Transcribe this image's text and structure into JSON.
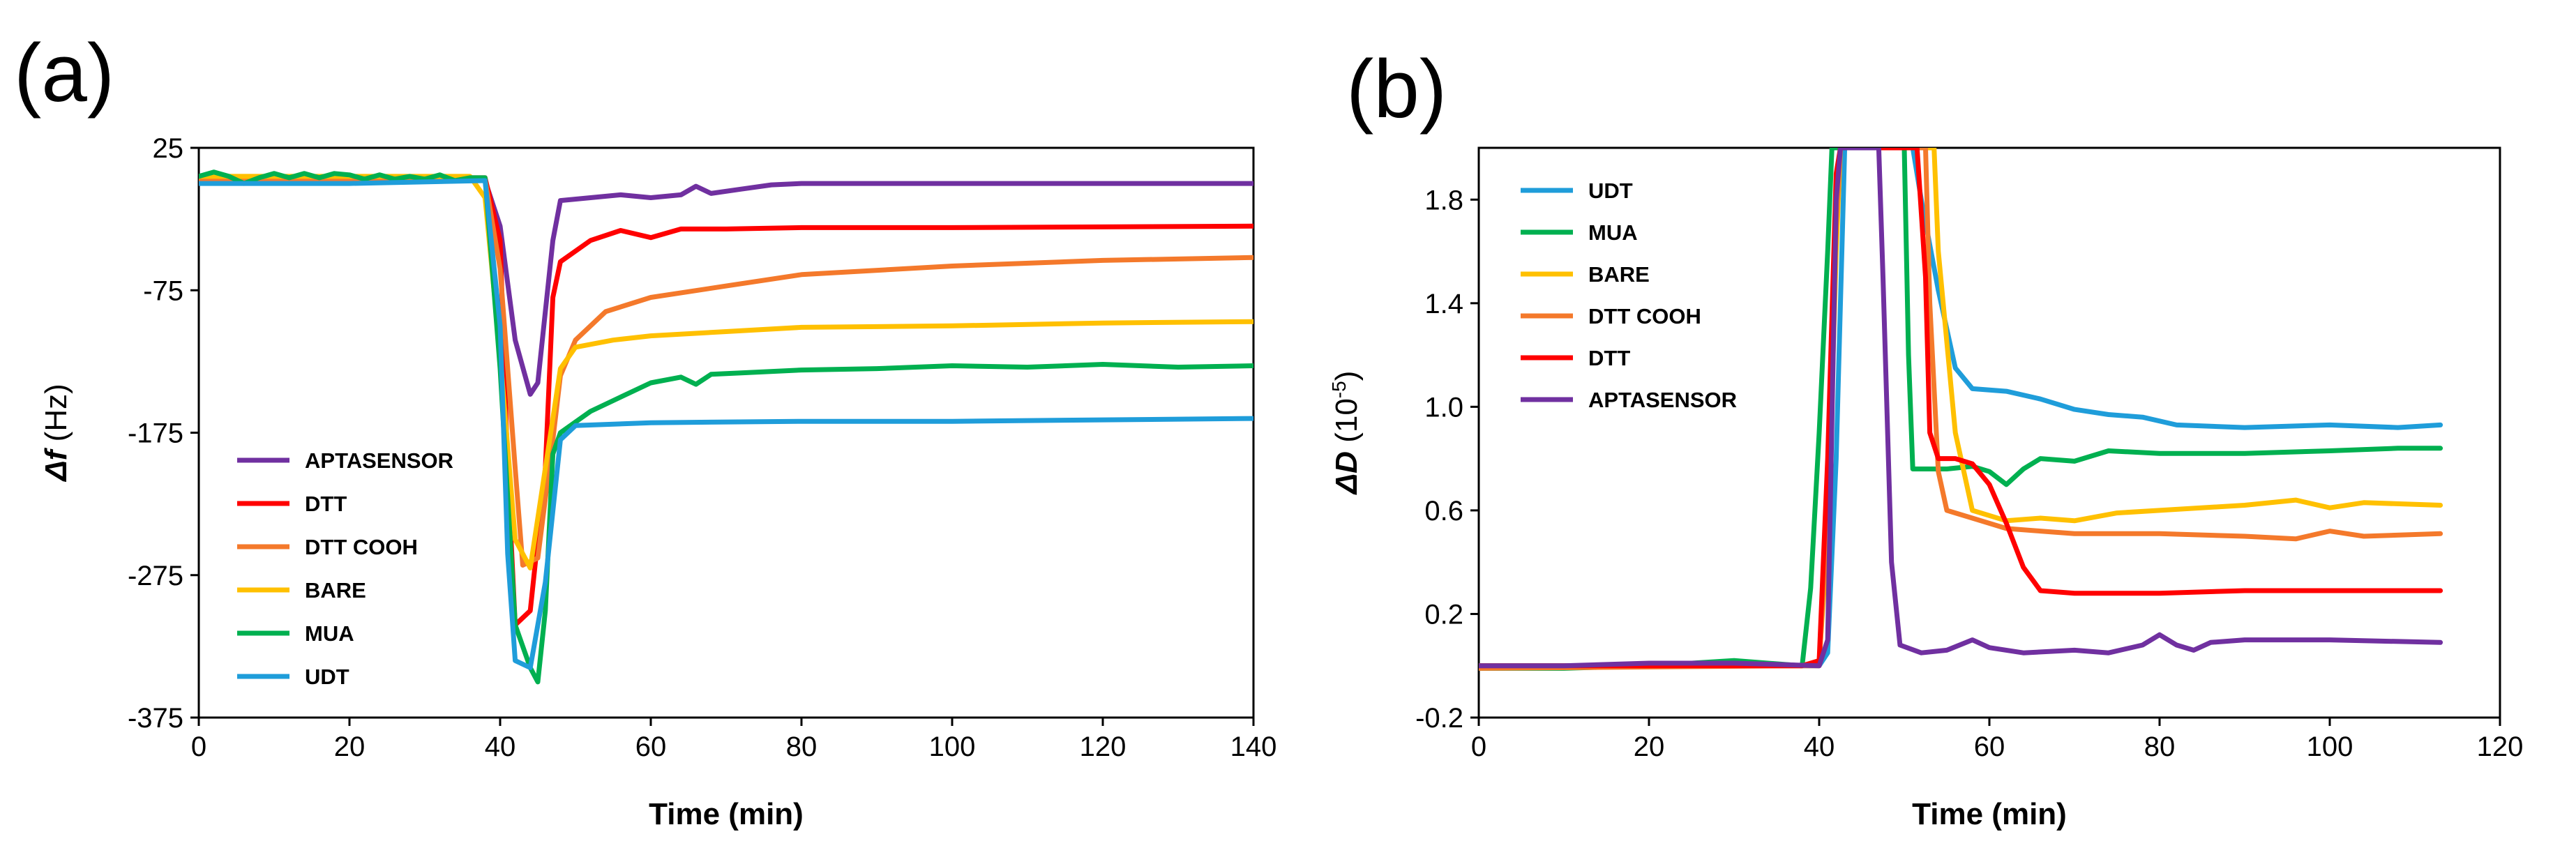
{
  "figure": {
    "panel_a_label": "(a)",
    "panel_b_label": "(b)"
  },
  "chart_data": [
    {
      "id": "a",
      "type": "line",
      "panel_label": "(a)",
      "xlabel": "Time (min)",
      "ylabel_symbol": "Δf",
      "ylabel_unit": " (Hz)",
      "xlim": [
        0,
        140
      ],
      "ylim": [
        -375,
        25
      ],
      "xticks": [
        0,
        20,
        40,
        60,
        80,
        100,
        120,
        140
      ],
      "yticks": [
        25,
        -75,
        -175,
        -275,
        -375
      ],
      "legend_position": "bottom-left",
      "series": [
        {
          "name": "APTASENSOR",
          "color": "#7030A0",
          "points": [
            [
              0,
              2
            ],
            [
              20,
              2
            ],
            [
              38,
              2
            ],
            [
              40,
              -30
            ],
            [
              42,
              -110
            ],
            [
              44,
              -148
            ],
            [
              45,
              -140
            ],
            [
              47,
              -40
            ],
            [
              48,
              -12
            ],
            [
              52,
              -10
            ],
            [
              56,
              -8
            ],
            [
              60,
              -10
            ],
            [
              64,
              -8
            ],
            [
              66,
              -2
            ],
            [
              68,
              -7
            ],
            [
              72,
              -4
            ],
            [
              76,
              -1
            ],
            [
              80,
              0
            ],
            [
              100,
              0
            ],
            [
              140,
              0
            ]
          ]
        },
        {
          "name": "DTT",
          "color": "#FF0000",
          "points": [
            [
              0,
              4
            ],
            [
              38,
              4
            ],
            [
              40,
              -40
            ],
            [
              41,
              -200
            ],
            [
              42,
              -310
            ],
            [
              44,
              -300
            ],
            [
              46,
              -200
            ],
            [
              47,
              -80
            ],
            [
              48,
              -55
            ],
            [
              52,
              -40
            ],
            [
              56,
              -33
            ],
            [
              60,
              -38
            ],
            [
              64,
              -32
            ],
            [
              70,
              -32
            ],
            [
              80,
              -31
            ],
            [
              100,
              -31
            ],
            [
              140,
              -30
            ]
          ]
        },
        {
          "name": "DTT COOH",
          "color": "#F4792B",
          "points": [
            [
              0,
              3
            ],
            [
              38,
              3
            ],
            [
              40,
              -60
            ],
            [
              42,
              -200
            ],
            [
              43,
              -268
            ],
            [
              45,
              -263
            ],
            [
              47,
              -180
            ],
            [
              48,
              -135
            ],
            [
              50,
              -110
            ],
            [
              54,
              -90
            ],
            [
              60,
              -80
            ],
            [
              70,
              -72
            ],
            [
              80,
              -64
            ],
            [
              100,
              -58
            ],
            [
              120,
              -54
            ],
            [
              140,
              -52
            ]
          ]
        },
        {
          "name": "BARE",
          "color": "#FFC000",
          "points": [
            [
              0,
              5
            ],
            [
              36,
              5
            ],
            [
              38,
              -10
            ],
            [
              40,
              -120
            ],
            [
              42,
              -250
            ],
            [
              44,
              -270
            ],
            [
              46,
              -200
            ],
            [
              48,
              -130
            ],
            [
              50,
              -115
            ],
            [
              55,
              -110
            ],
            [
              60,
              -107
            ],
            [
              70,
              -104
            ],
            [
              80,
              -101
            ],
            [
              100,
              -100
            ],
            [
              120,
              -98
            ],
            [
              140,
              -97
            ]
          ]
        },
        {
          "name": "MUA",
          "color": "#00B050",
          "points": [
            [
              0,
              5
            ],
            [
              2,
              8
            ],
            [
              4,
              5
            ],
            [
              6,
              0
            ],
            [
              8,
              4
            ],
            [
              10,
              7
            ],
            [
              12,
              4
            ],
            [
              14,
              7
            ],
            [
              16,
              4
            ],
            [
              18,
              7
            ],
            [
              20,
              6
            ],
            [
              22,
              3
            ],
            [
              24,
              6
            ],
            [
              26,
              3
            ],
            [
              28,
              5
            ],
            [
              30,
              3
            ],
            [
              32,
              6
            ],
            [
              34,
              2
            ],
            [
              36,
              4
            ],
            [
              38,
              4
            ],
            [
              40,
              -130
            ],
            [
              42,
              -310
            ],
            [
              44,
              -340
            ],
            [
              45,
              -350
            ],
            [
              46,
              -300
            ],
            [
              47,
              -190
            ],
            [
              48,
              -175
            ],
            [
              52,
              -160
            ],
            [
              56,
              -150
            ],
            [
              60,
              -140
            ],
            [
              64,
              -136
            ],
            [
              66,
              -141
            ],
            [
              68,
              -134
            ],
            [
              72,
              -133
            ],
            [
              80,
              -131
            ],
            [
              90,
              -130
            ],
            [
              100,
              -128
            ],
            [
              110,
              -129
            ],
            [
              120,
              -127
            ],
            [
              130,
              -129
            ],
            [
              140,
              -128
            ]
          ]
        },
        {
          "name": "UDT",
          "color": "#1F9DDA",
          "points": [
            [
              0,
              0
            ],
            [
              20,
              0
            ],
            [
              38,
              2
            ],
            [
              40,
              -100
            ],
            [
              41,
              -260
            ],
            [
              42,
              -335
            ],
            [
              44,
              -340
            ],
            [
              46,
              -280
            ],
            [
              48,
              -180
            ],
            [
              50,
              -170
            ],
            [
              60,
              -168
            ],
            [
              80,
              -167
            ],
            [
              100,
              -167
            ],
            [
              120,
              -166
            ],
            [
              140,
              -165
            ]
          ]
        }
      ]
    },
    {
      "id": "b",
      "type": "line",
      "panel_label": "(b)",
      "xlabel": "Time (min)",
      "ylabel_symbol": "ΔD",
      "ylabel_unit": " (10",
      "ylabel_exp": "-5",
      "ylabel_close": ")",
      "xlim": [
        0,
        120
      ],
      "ylim": [
        -0.2,
        2.0
      ],
      "xticks": [
        0,
        20,
        40,
        60,
        80,
        100,
        120
      ],
      "yticks": [
        1.8,
        1.4,
        1.0,
        0.6,
        0.2,
        -0.2
      ],
      "legend_position": "top-left",
      "series": [
        {
          "name": "UDT",
          "color": "#1F9DDA",
          "points": [
            [
              0,
              0.0
            ],
            [
              40,
              0.0
            ],
            [
              41,
              0.05
            ],
            [
              42,
              0.8
            ],
            [
              43,
              2.0
            ],
            [
              51,
              2.0
            ],
            [
              52,
              1.8
            ],
            [
              54,
              1.45
            ],
            [
              56,
              1.15
            ],
            [
              58,
              1.07
            ],
            [
              62,
              1.06
            ],
            [
              66,
              1.03
            ],
            [
              70,
              0.99
            ],
            [
              74,
              0.97
            ],
            [
              78,
              0.96
            ],
            [
              82,
              0.93
            ],
            [
              90,
              0.92
            ],
            [
              100,
              0.93
            ],
            [
              108,
              0.92
            ],
            [
              113,
              0.93
            ]
          ]
        },
        {
          "name": "MUA",
          "color": "#00B050",
          "points": [
            [
              0,
              -0.01
            ],
            [
              10,
              -0.01
            ],
            [
              20,
              0.0
            ],
            [
              30,
              0.02
            ],
            [
              38,
              0.0
            ],
            [
              39,
              0.3
            ],
            [
              40,
              0.9
            ],
            [
              41,
              1.6
            ],
            [
              41.5,
              2.0
            ],
            [
              50,
              2.0
            ],
            [
              50.5,
              1.2
            ],
            [
              51,
              0.76
            ],
            [
              55,
              0.76
            ],
            [
              58,
              0.77
            ],
            [
              60,
              0.75
            ],
            [
              62,
              0.7
            ],
            [
              64,
              0.76
            ],
            [
              66,
              0.8
            ],
            [
              70,
              0.79
            ],
            [
              74,
              0.83
            ],
            [
              80,
              0.82
            ],
            [
              90,
              0.82
            ],
            [
              100,
              0.83
            ],
            [
              108,
              0.84
            ],
            [
              113,
              0.84
            ]
          ]
        },
        {
          "name": "BARE",
          "color": "#FFC000",
          "points": [
            [
              0,
              0.0
            ],
            [
              38,
              0.0
            ],
            [
              40,
              0.02
            ],
            [
              41,
              0.5
            ],
            [
              42,
              1.6
            ],
            [
              42.5,
              2.0
            ],
            [
              53.5,
              2.0
            ],
            [
              54,
              1.6
            ],
            [
              56,
              0.9
            ],
            [
              58,
              0.6
            ],
            [
              62,
              0.56
            ],
            [
              66,
              0.57
            ],
            [
              70,
              0.56
            ],
            [
              75,
              0.59
            ],
            [
              80,
              0.6
            ],
            [
              90,
              0.62
            ],
            [
              96,
              0.64
            ],
            [
              100,
              0.61
            ],
            [
              104,
              0.63
            ],
            [
              113,
              0.62
            ]
          ]
        },
        {
          "name": "DTT COOH",
          "color": "#F4792B",
          "points": [
            [
              0,
              -0.01
            ],
            [
              38,
              0.0
            ],
            [
              40,
              0.0
            ],
            [
              41,
              0.6
            ],
            [
              42,
              1.7
            ],
            [
              42.5,
              2.0
            ],
            [
              52.5,
              2.0
            ],
            [
              53,
              1.4
            ],
            [
              54,
              0.75
            ],
            [
              55,
              0.6
            ],
            [
              58,
              0.57
            ],
            [
              62,
              0.53
            ],
            [
              66,
              0.52
            ],
            [
              70,
              0.51
            ],
            [
              80,
              0.51
            ],
            [
              90,
              0.5
            ],
            [
              96,
              0.49
            ],
            [
              100,
              0.52
            ],
            [
              104,
              0.5
            ],
            [
              113,
              0.51
            ]
          ]
        },
        {
          "name": "DTT",
          "color": "#FF0000",
          "points": [
            [
              0,
              0.0
            ],
            [
              38,
              0.0
            ],
            [
              40,
              0.02
            ],
            [
              41,
              0.8
            ],
            [
              42,
              1.9
            ],
            [
              42.5,
              2.0
            ],
            [
              51.5,
              2.0
            ],
            [
              52.5,
              1.5
            ],
            [
              53,
              0.9
            ],
            [
              54,
              0.8
            ],
            [
              56,
              0.8
            ],
            [
              58,
              0.78
            ],
            [
              60,
              0.7
            ],
            [
              62,
              0.55
            ],
            [
              64,
              0.38
            ],
            [
              66,
              0.29
            ],
            [
              70,
              0.28
            ],
            [
              80,
              0.28
            ],
            [
              90,
              0.29
            ],
            [
              100,
              0.29
            ],
            [
              113,
              0.29
            ]
          ]
        },
        {
          "name": "APTASENSOR",
          "color": "#7030A0",
          "points": [
            [
              0,
              0.0
            ],
            [
              10,
              0.0
            ],
            [
              20,
              0.01
            ],
            [
              30,
              0.01
            ],
            [
              40,
              0.0
            ],
            [
              41,
              0.1
            ],
            [
              42,
              1.8
            ],
            [
              42.5,
              2.0
            ],
            [
              47,
              2.0
            ],
            [
              47.5,
              1.5
            ],
            [
              48.5,
              0.4
            ],
            [
              49.5,
              0.08
            ],
            [
              52,
              0.05
            ],
            [
              55,
              0.06
            ],
            [
              58,
              0.1
            ],
            [
              60,
              0.07
            ],
            [
              64,
              0.05
            ],
            [
              70,
              0.06
            ],
            [
              74,
              0.05
            ],
            [
              78,
              0.08
            ],
            [
              80,
              0.12
            ],
            [
              82,
              0.08
            ],
            [
              84,
              0.06
            ],
            [
              86,
              0.09
            ],
            [
              90,
              0.1
            ],
            [
              100,
              0.1
            ],
            [
              113,
              0.09
            ]
          ]
        }
      ]
    }
  ]
}
